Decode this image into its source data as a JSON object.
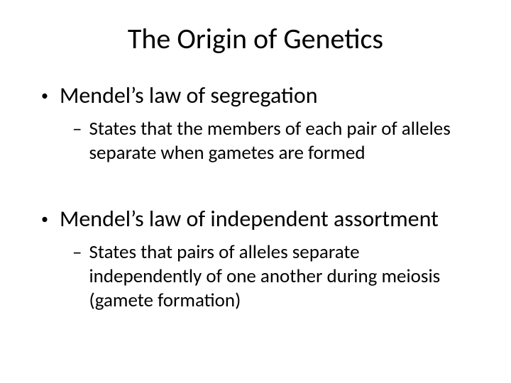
{
  "slide": {
    "title": "The Origin of Genetics",
    "background_color": "#ffffff",
    "text_color": "#000000",
    "title_fontsize": 40,
    "bullet1_fontsize": 32,
    "bullet2_fontsize": 27,
    "items": [
      {
        "level": 1,
        "text": "Mendel’s law of segregation",
        "children": [
          {
            "level": 2,
            "text": "States that the members of each pair of alleles separate when gametes are formed"
          }
        ]
      },
      {
        "level": 1,
        "text": "Mendel’s law of independent assortment",
        "children": [
          {
            "level": 2,
            "text": "States that pairs of alleles separate independently of one another during meiosis (gamete formation)"
          }
        ]
      }
    ]
  }
}
